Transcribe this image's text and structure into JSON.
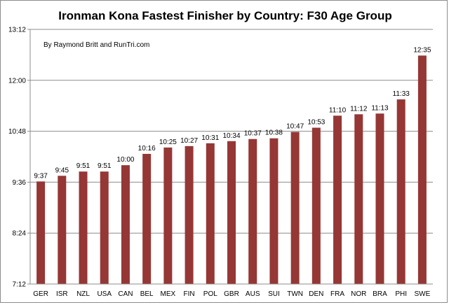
{
  "chart_data": {
    "type": "bar",
    "title": "Ironman Kona Fastest Finisher by Country: F30 Age Group",
    "subtitle": "By Raymond Britt and RunTri.com",
    "xlabel": "",
    "ylabel": "",
    "ylim": [
      "7:12",
      "13:12"
    ],
    "yticks": [
      "7:12",
      "8:24",
      "9:36",
      "10:48",
      "12:00",
      "13:12"
    ],
    "grid": true,
    "legend": "none",
    "bar_color": "#953735",
    "categories": [
      "GER",
      "ISR",
      "NZL",
      "USA",
      "CAN",
      "BEL",
      "MEX",
      "FIN",
      "POL",
      "GBR",
      "AUS",
      "SUI",
      "TWN",
      "DEN",
      "FRA",
      "NOR",
      "BRA",
      "PHI",
      "SWE"
    ],
    "values": [
      "9:37",
      "9:45",
      "9:51",
      "9:51",
      "10:00",
      "10:16",
      "10:25",
      "10:27",
      "10:31",
      "10:34",
      "10:37",
      "10:38",
      "10:47",
      "10:53",
      "11:10",
      "11:12",
      "11:13",
      "11:33",
      "12:35"
    ]
  }
}
